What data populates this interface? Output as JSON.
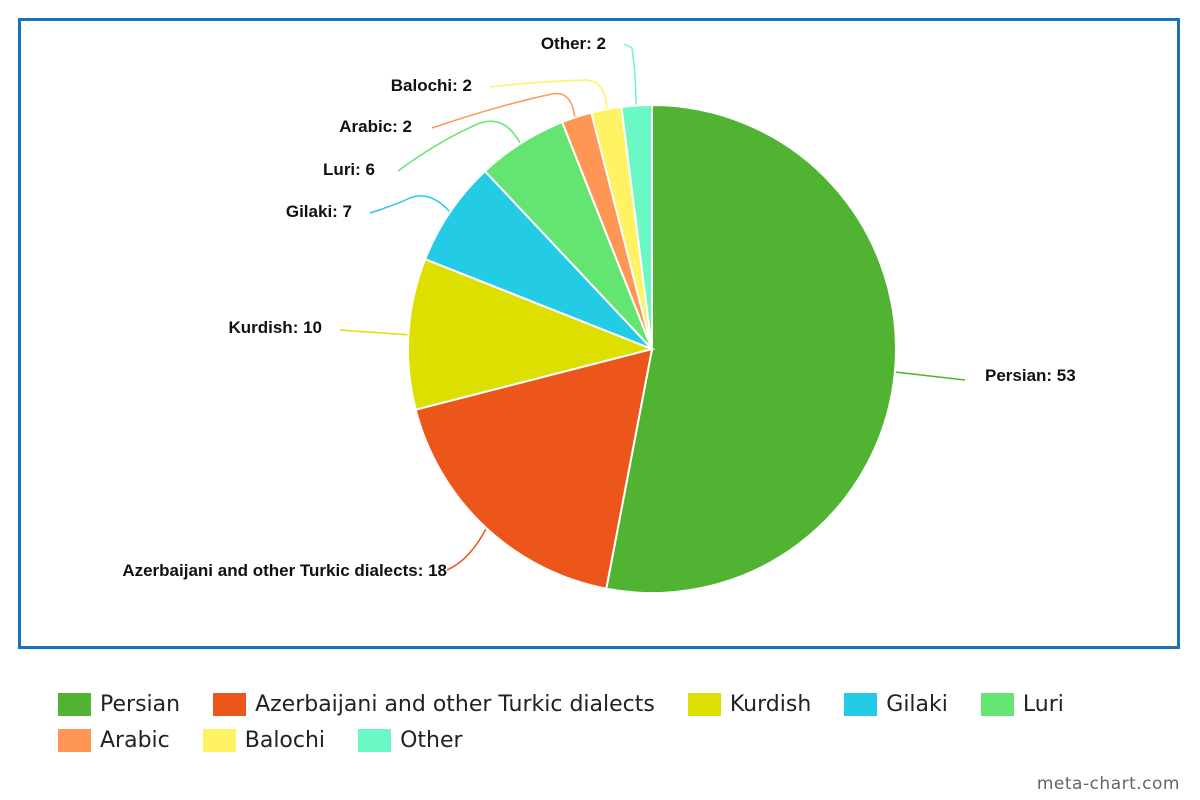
{
  "chart_data": {
    "type": "pie",
    "slices": [
      {
        "label": "Persian",
        "value": 53,
        "color": "#50b432"
      },
      {
        "label": "Azerbaijani and other Turkic dialects",
        "value": 18,
        "color": "#ed561b"
      },
      {
        "label": "Kurdish",
        "value": 10,
        "color": "#dddf00"
      },
      {
        "label": "Gilaki",
        "value": 7,
        "color": "#24cbe5"
      },
      {
        "label": "Luri",
        "value": 6,
        "color": "#64e572"
      },
      {
        "label": "Arabic",
        "value": 2,
        "color": "#ff9655"
      },
      {
        "label": "Balochi",
        "value": 2,
        "color": "#fff263"
      },
      {
        "label": "Other",
        "value": 2,
        "color": "#6af9c4"
      }
    ],
    "legend_position": "bottom"
  },
  "frame_color": "#1a73b8",
  "watermark": "meta-chart.com"
}
